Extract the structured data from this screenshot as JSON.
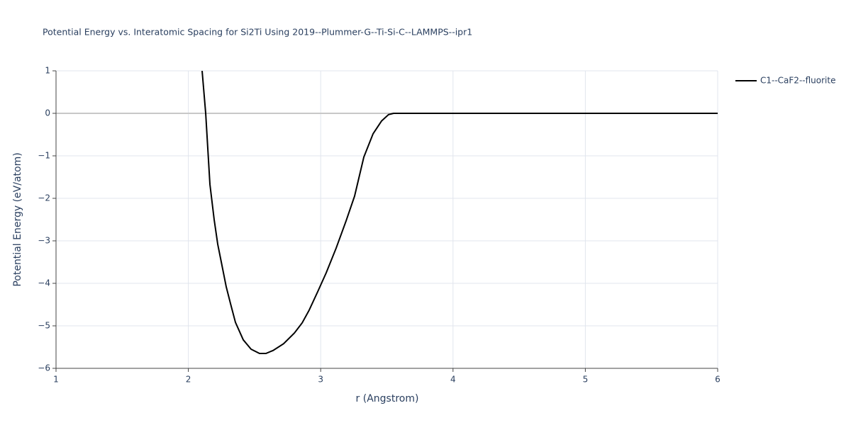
{
  "chart_data": {
    "type": "line",
    "title": "Potential Energy vs. Interatomic Spacing for Si2Ti Using 2019--Plummer-G--Ti-Si-C--LAMMPS--ipr1",
    "x_label": "r (Angstrom)",
    "y_label": "Potential Energy (eV/atom)",
    "x": [
      2.104,
      2.131,
      2.163,
      2.195,
      2.222,
      2.249,
      2.286,
      2.318,
      2.356,
      2.415,
      2.474,
      2.538,
      2.586,
      2.64,
      2.72,
      2.801,
      2.86,
      2.913,
      2.977,
      3.042,
      3.117,
      3.192,
      3.256,
      3.326,
      3.396,
      3.46,
      3.513,
      3.551,
      6
    ],
    "series": [
      {
        "name": "C1--CaF2--fluorite",
        "color": "#000000",
        "values": [
          1,
          0,
          -1.67,
          -2.5,
          -3.08,
          -3.5,
          -4.08,
          -4.47,
          -4.92,
          -5.33,
          -5.55,
          -5.65,
          -5.65,
          -5.58,
          -5.42,
          -5.17,
          -4.93,
          -4.63,
          -4.2,
          -3.75,
          -3.17,
          -2.53,
          -1.95,
          -1.03,
          -0.48,
          -0.18,
          -0.03,
          0,
          0
        ]
      }
    ],
    "xlim": [
      1,
      6
    ],
    "xticks": [
      1,
      2,
      3,
      4,
      5,
      6
    ],
    "ylim": [
      -6,
      1
    ],
    "yticks": [
      {
        "value": -6,
        "label": "−6"
      },
      {
        "value": -5,
        "label": "−5"
      },
      {
        "value": -4,
        "label": "−4"
      },
      {
        "value": -3,
        "label": "−3"
      },
      {
        "value": -2,
        "label": "−2"
      },
      {
        "value": -1,
        "label": "−1"
      },
      0,
      1
    ],
    "grid": true
  }
}
